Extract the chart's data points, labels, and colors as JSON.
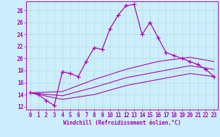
{
  "xlabel": "Windchill (Refroidissement éolien,°C)",
  "background_color": "#cceeff",
  "grid_color": "#b0ddd0",
  "line_color": "#aa00aa",
  "xlim": [
    -0.5,
    23.5
  ],
  "ylim": [
    11.5,
    29.5
  ],
  "xticks": [
    0,
    1,
    2,
    3,
    4,
    5,
    6,
    7,
    8,
    9,
    10,
    11,
    12,
    13,
    14,
    15,
    16,
    17,
    18,
    19,
    20,
    21,
    22,
    23
  ],
  "yticks": [
    12,
    14,
    16,
    18,
    20,
    22,
    24,
    26,
    28
  ],
  "main_series": {
    "x": [
      0,
      1,
      2,
      3,
      4,
      5,
      6,
      7,
      8,
      9,
      10,
      11,
      12,
      13,
      14,
      15,
      16,
      17,
      18,
      19,
      20,
      21,
      22,
      23
    ],
    "y": [
      14.3,
      14.0,
      13.0,
      12.2,
      17.8,
      17.5,
      17.0,
      19.5,
      21.8,
      21.5,
      25.0,
      27.2,
      28.8,
      29.0,
      24.0,
      26.0,
      23.5,
      21.0,
      20.5,
      20.0,
      19.5,
      19.0,
      18.2,
      17.0
    ]
  },
  "smooth_series": [
    {
      "x": [
        0,
        4,
        8,
        12,
        16,
        20,
        23
      ],
      "y": [
        14.3,
        13.2,
        14.0,
        15.5,
        16.5,
        17.5,
        17.0
      ]
    },
    {
      "x": [
        0,
        4,
        8,
        12,
        16,
        20,
        23
      ],
      "y": [
        14.3,
        13.8,
        15.2,
        16.8,
        17.8,
        18.8,
        18.2
      ]
    },
    {
      "x": [
        0,
        4,
        8,
        12,
        16,
        20,
        23
      ],
      "y": [
        14.3,
        14.5,
        16.5,
        18.2,
        19.5,
        20.2,
        19.5
      ]
    }
  ]
}
